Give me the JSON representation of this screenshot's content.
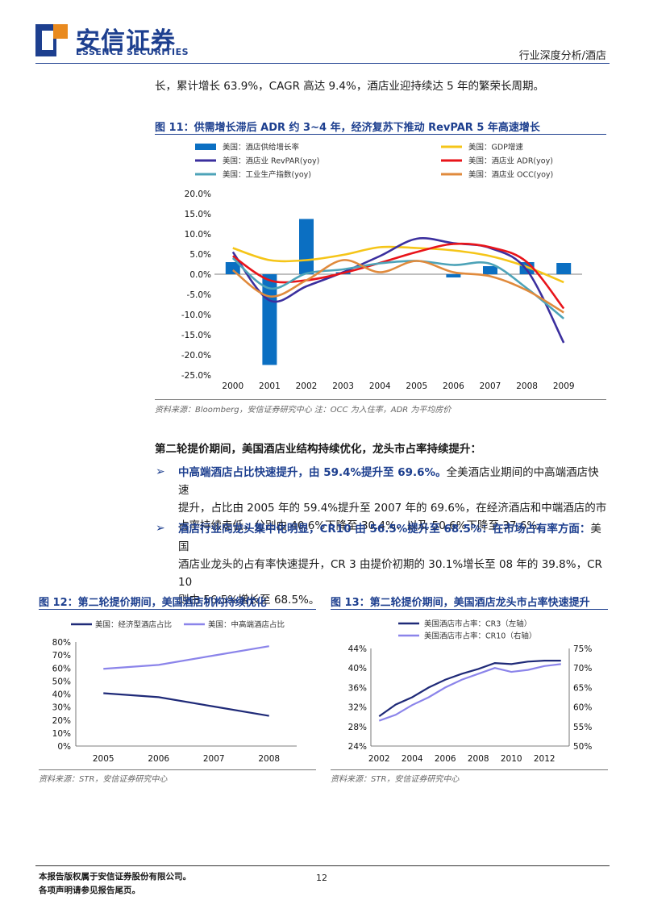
{
  "header": {
    "logo_cn": "安信证券",
    "logo_en": "ESSENCE SECURITIES",
    "section": "行业深度分析/酒店"
  },
  "intro_line": "长，累计增长 63.9%，CAGR 高达 9.4%，酒店业迎持续达 5 年的繁荣长周期。",
  "fig11": {
    "title": "图 11：供需增长滞后 ADR 约 3~4 年，经济复苏下推动 RevPAR 5 年高速增长",
    "source": "资料来源：Bloomberg，安信证券研究中心   注：OCC 为入住率，ADR 为平均房价"
  },
  "section2": {
    "heading": "第二轮提价期间，美国酒店业结构持续优化，龙头市占率持续提升：",
    "bullet_mark": "➢",
    "b1_bold": "中高端酒店占比快速提升，由 59.4%提升至 69.6%。",
    "b1_line1": "全美酒店业期间的中高端酒店快速",
    "b1_line2": "提升，占比由 2005 年的 59.4%提升至 2007 年的 69.6%，在经济酒店和中端酒店的市",
    "b1_line3": "占率持续走低，分别由 40.6%下降至 30.4%、以及 50.6%下降至 37.6%。",
    "b2_bold": "酒店行业向龙头集中化明显，CR10 由 56.5%提升至 68.5%：在市场占有率方面：",
    "b2_tail": "美国",
    "b2_line2": "酒店业龙头的占有率快速提升，CR 3 由提价初期的 30.1%增长至 08 年的 39.8%，CR 10",
    "b2_line3": "则由 56.5%增长至 68.5%。"
  },
  "fig12": {
    "title": "图 12：第二轮提价期间，美国酒店机构持续优化",
    "source": "资料来源：STR，安信证券研究中心"
  },
  "fig13": {
    "title": "图 13：第二轮提价期间，美国酒店龙头市占率快速提升",
    "source": "资料来源：STR，安信证券研究中心"
  },
  "footer": {
    "line1": "本报告版权属于安信证券股份有限公司。",
    "line2": "各项声明请参见报告尾页。",
    "page": "12"
  },
  "colors": {
    "brand": "#1d3f8f",
    "bar": "#0b6fc2",
    "gdp": "#f5c518",
    "revpar": "#3b2f9e",
    "adr": "#e8141a",
    "ip": "#4da3b8",
    "occ": "#e08a3c",
    "econ": "#1f2a78",
    "upscale": "#8b84ea"
  },
  "chart_data": [
    {
      "type": "bar+line",
      "categories": [
        "2000",
        "2001",
        "2002",
        "2003",
        "2004",
        "2005",
        "2006",
        "2007",
        "2008",
        "2009"
      ],
      "ylim": [
        -25,
        20
      ],
      "yticks": [
        "20.0%",
        "15.0%",
        "10.0%",
        "5.0%",
        "0.0%",
        "-5.0%",
        "-10.0%",
        "-15.0%",
        "-20.0%",
        "-25.0%"
      ],
      "series": [
        {
          "name": "美国：酒店供给增长率",
          "kind": "bar",
          "color": "#0b6fc2",
          "values": [
            3.0,
            -22.5,
            13.7,
            0.5,
            null,
            null,
            -0.8,
            2.0,
            3.0,
            2.8
          ]
        },
        {
          "name": "美国：GDP增速",
          "kind": "line",
          "color": "#f5c518",
          "values": [
            6.5,
            3.5,
            3.5,
            4.8,
            6.7,
            6.5,
            5.9,
            4.5,
            1.8,
            -2.0
          ]
        },
        {
          "name": "美国：酒店业 RevPAR(yoy)",
          "kind": "line",
          "color": "#3b2f9e",
          "values": [
            5.5,
            -6.5,
            -3.0,
            0.5,
            4.5,
            8.8,
            7.7,
            6.5,
            1.0,
            -17.0
          ]
        },
        {
          "name": "美国：酒店业 ADR(yoy)",
          "kind": "line",
          "color": "#e8141a",
          "values": [
            4.5,
            -1.5,
            -1.5,
            0.3,
            2.8,
            5.5,
            7.5,
            6.7,
            3.0,
            -8.5
          ]
        },
        {
          "name": "美国：工业生产指数(yoy)",
          "kind": "line",
          "color": "#4da3b8",
          "values": [
            4.0,
            -3.5,
            0.2,
            1.2,
            2.7,
            3.3,
            2.3,
            2.6,
            -3.5,
            -11.0
          ]
        },
        {
          "name": "美国：酒店业 OCC(yoy)",
          "kind": "line",
          "color": "#e08a3c",
          "values": [
            1.0,
            -5.5,
            -1.5,
            3.5,
            0.5,
            3.3,
            0.5,
            -0.5,
            -4.0,
            -9.5
          ]
        }
      ]
    },
    {
      "type": "line",
      "categories": [
        "2005",
        "2006",
        "2007",
        "2008"
      ],
      "ylim": [
        0,
        80
      ],
      "yticks": [
        "80%",
        "70%",
        "60%",
        "50%",
        "40%",
        "30%",
        "20%",
        "10%",
        "0%"
      ],
      "series": [
        {
          "name": "美国：经济型酒店占比",
          "color": "#1f2a78",
          "values": [
            40.6,
            37.6,
            30.4,
            23.2
          ]
        },
        {
          "name": "美国：中高端酒店占比",
          "color": "#8b84ea",
          "values": [
            59.4,
            62.4,
            69.6,
            76.8
          ]
        }
      ]
    },
    {
      "type": "line",
      "x": [
        2002,
        2003,
        2004,
        2005,
        2006,
        2007,
        2008,
        2009,
        2010,
        2011,
        2012,
        2013
      ],
      "xticks": [
        "2002",
        "2004",
        "2006",
        "2008",
        "2010",
        "2012"
      ],
      "ylim_left": [
        24,
        44
      ],
      "ylim_right": [
        50,
        75
      ],
      "yticks_left": [
        "44%",
        "40%",
        "36%",
        "32%",
        "28%",
        "24%"
      ],
      "yticks_right": [
        "75%",
        "70%",
        "65%",
        "60%",
        "55%",
        "50%"
      ],
      "series": [
        {
          "name": "美国酒店市占率：CR3（左轴）",
          "axis": "left",
          "color": "#1f2a78",
          "values": [
            30.1,
            32.5,
            34.0,
            36.0,
            37.6,
            38.8,
            39.8,
            41.0,
            40.8,
            41.3,
            41.5,
            41.5
          ]
        },
        {
          "name": "美国酒店市占率：CR10（右轴）",
          "axis": "right",
          "color": "#8b84ea",
          "values": [
            56.5,
            58.0,
            60.5,
            62.5,
            65.0,
            67.0,
            68.5,
            70.0,
            69.0,
            69.5,
            70.5,
            71.0
          ]
        }
      ]
    }
  ]
}
